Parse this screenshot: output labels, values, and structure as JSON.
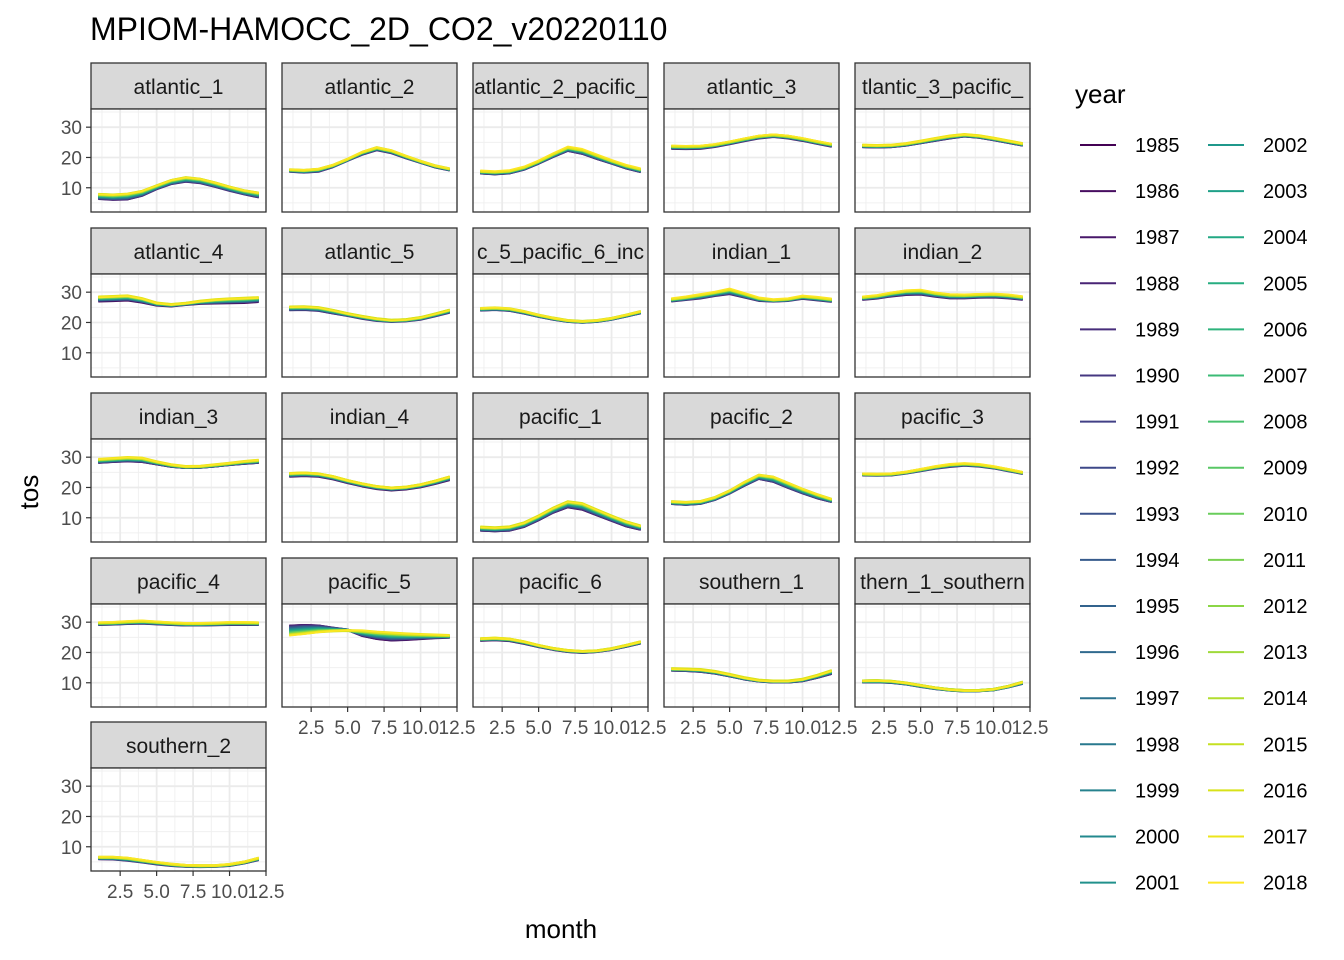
{
  "chart_data": {
    "type": "line",
    "title": "MPIOM-HAMOCC_2D_CO2_v20220110",
    "xlabel": "month",
    "ylabel": "tos",
    "xlim": [
      0.5,
      12.5
    ],
    "ylim": [
      2,
      36
    ],
    "x_ticks": [
      2.5,
      5.0,
      7.5,
      10.0,
      12.5
    ],
    "x_tick_labels": [
      "2.5",
      "5.0",
      "7.5",
      "10.0",
      "12.5"
    ],
    "y_ticks": [
      10,
      20,
      30
    ],
    "y_tick_labels": [
      "10",
      "20",
      "30"
    ],
    "grid": true,
    "legend_position": "right",
    "legend_title": "year",
    "years": [
      "1985",
      "1986",
      "1987",
      "1988",
      "1989",
      "1990",
      "1991",
      "1992",
      "1993",
      "1994",
      "1995",
      "1996",
      "1997",
      "1998",
      "1999",
      "2000",
      "2001",
      "2002",
      "2003",
      "2004",
      "2005",
      "2006",
      "2007",
      "2008",
      "2009",
      "2010",
      "2011",
      "2012",
      "2013",
      "2014",
      "2015",
      "2016",
      "2017",
      "2018"
    ],
    "colors": [
      "#440154",
      "#470d60",
      "#48186a",
      "#482475",
      "#472d7b",
      "#453781",
      "#424086",
      "#3e4989",
      "#3b528b",
      "#375b8d",
      "#33638d",
      "#306a8e",
      "#2c728e",
      "#29798e",
      "#26828e",
      "#23898e",
      "#21918c",
      "#1f988b",
      "#1fa088",
      "#22a884",
      "#27ad81",
      "#2eb37c",
      "#3bbb75",
      "#48c16e",
      "#58c765",
      "#69cd5b",
      "#7ad151",
      "#8bd646",
      "#9fda3a",
      "#b1dd2f",
      "#c5e021",
      "#d8e219",
      "#ece51b",
      "#fde725"
    ],
    "x": [
      1,
      2,
      3,
      4,
      5,
      6,
      7,
      8,
      9,
      10,
      11,
      12
    ],
    "facets": [
      {
        "label": "atlantic_1",
        "early": [
          6.3,
          6.0,
          6.1,
          7.3,
          9.5,
          11.2,
          12.0,
          11.5,
          10.3,
          9.0,
          7.8,
          6.8
        ],
        "late": [
          8.0,
          7.8,
          8.1,
          9.0,
          10.8,
          12.6,
          13.5,
          13.0,
          11.8,
          10.4,
          9.2,
          8.4
        ]
      },
      {
        "label": "atlantic_2",
        "early": [
          15.4,
          15.1,
          15.4,
          16.9,
          19.0,
          21.0,
          22.5,
          21.5,
          19.8,
          18.3,
          16.8,
          15.8
        ],
        "late": [
          16.0,
          15.8,
          16.2,
          17.5,
          19.5,
          21.8,
          23.3,
          22.3,
          20.5,
          18.8,
          17.3,
          16.3
        ]
      },
      {
        "label": "atlantic_2_pacific_",
        "early": [
          14.8,
          14.5,
          14.8,
          16.0,
          18.0,
          20.2,
          22.2,
          21.2,
          19.5,
          18.0,
          16.4,
          15.2
        ],
        "late": [
          15.5,
          15.3,
          15.6,
          16.8,
          18.8,
          21.2,
          23.4,
          22.6,
          20.8,
          19.0,
          17.4,
          16.2
        ]
      },
      {
        "label": "atlantic_3",
        "early": [
          23.0,
          22.9,
          23.0,
          23.6,
          24.5,
          25.5,
          26.4,
          26.9,
          26.4,
          25.6,
          24.6,
          23.7
        ],
        "late": [
          23.8,
          23.7,
          23.8,
          24.3,
          25.2,
          26.2,
          27.1,
          27.5,
          27.1,
          26.3,
          25.3,
          24.4
        ]
      },
      {
        "label": "tlantic_3_pacific_",
        "early": [
          23.5,
          23.4,
          23.5,
          24.0,
          24.8,
          25.6,
          26.4,
          27.0,
          26.6,
          25.8,
          24.9,
          24.0
        ],
        "late": [
          24.1,
          24.0,
          24.1,
          24.6,
          25.4,
          26.3,
          27.1,
          27.6,
          27.2,
          26.4,
          25.5,
          24.6
        ]
      },
      {
        "label": "atlantic_4",
        "early": [
          27.1,
          27.2,
          27.4,
          26.7,
          25.7,
          25.4,
          25.9,
          26.3,
          26.4,
          26.5,
          26.6,
          26.9
        ],
        "late": [
          28.5,
          28.7,
          28.9,
          28.0,
          26.5,
          26.0,
          26.4,
          27.1,
          27.6,
          27.9,
          28.1,
          28.3
        ]
      },
      {
        "label": "atlantic_5",
        "early": [
          24.1,
          24.2,
          23.9,
          23.0,
          22.2,
          21.3,
          20.6,
          20.3,
          20.5,
          21.0,
          22.1,
          23.3
        ],
        "late": [
          25.2,
          25.3,
          25.0,
          24.1,
          23.0,
          22.1,
          21.3,
          20.8,
          21.0,
          21.7,
          22.9,
          24.2
        ]
      },
      {
        "label": "c_5_pacific_6_inc",
        "early": [
          24.0,
          24.2,
          23.9,
          23.0,
          21.9,
          21.0,
          20.3,
          20.0,
          20.3,
          21.0,
          22.0,
          23.1
        ],
        "late": [
          24.7,
          24.9,
          24.6,
          23.7,
          22.5,
          21.5,
          20.7,
          20.4,
          20.7,
          21.4,
          22.5,
          23.7
        ]
      },
      {
        "label": "indian_1",
        "early": [
          27.0,
          27.5,
          28.0,
          28.8,
          29.4,
          28.3,
          27.2,
          27.0,
          27.2,
          27.9,
          27.4,
          26.9
        ],
        "late": [
          27.8,
          28.4,
          29.2,
          30.0,
          31.0,
          29.6,
          28.1,
          27.5,
          27.8,
          28.7,
          28.3,
          27.7
        ]
      },
      {
        "label": "indian_2",
        "early": [
          27.6,
          28.0,
          28.7,
          29.2,
          29.3,
          28.6,
          28.1,
          28.1,
          28.3,
          28.4,
          28.1,
          27.6
        ],
        "late": [
          28.4,
          28.9,
          29.8,
          30.5,
          30.7,
          29.8,
          29.2,
          29.1,
          29.3,
          29.4,
          29.1,
          28.5
        ]
      },
      {
        "label": "indian_3",
        "early": [
          28.2,
          28.5,
          28.7,
          28.5,
          27.7,
          26.9,
          26.5,
          26.6,
          27.0,
          27.5,
          27.9,
          28.2
        ],
        "late": [
          29.3,
          29.6,
          29.9,
          29.7,
          28.5,
          27.5,
          26.9,
          27.0,
          27.5,
          28.0,
          28.6,
          29.0
        ]
      },
      {
        "label": "indian_4",
        "early": [
          23.7,
          23.9,
          23.7,
          22.8,
          21.6,
          20.5,
          19.6,
          19.2,
          19.5,
          20.2,
          21.3,
          22.6
        ],
        "late": [
          24.7,
          24.9,
          24.6,
          23.7,
          22.4,
          21.3,
          20.4,
          19.9,
          20.2,
          21.0,
          22.2,
          23.6
        ]
      },
      {
        "label": "pacific_1",
        "early": [
          5.8,
          5.6,
          5.8,
          7.0,
          9.2,
          11.7,
          13.5,
          12.7,
          10.8,
          9.0,
          7.2,
          6.1
        ],
        "late": [
          7.0,
          6.8,
          7.1,
          8.4,
          10.7,
          13.3,
          15.4,
          14.8,
          12.7,
          10.7,
          8.8,
          7.4
        ]
      },
      {
        "label": "pacific_2",
        "early": [
          14.6,
          14.3,
          14.6,
          15.9,
          18.0,
          20.5,
          22.8,
          21.8,
          19.8,
          18.0,
          16.4,
          15.2
        ],
        "late": [
          15.4,
          15.2,
          15.5,
          16.8,
          19.0,
          21.8,
          24.2,
          23.6,
          21.6,
          19.6,
          17.8,
          16.2
        ]
      },
      {
        "label": "pacific_3",
        "early": [
          24.1,
          24.0,
          24.1,
          24.7,
          25.5,
          26.3,
          26.9,
          27.3,
          27.0,
          26.4,
          25.5,
          24.6
        ],
        "late": [
          24.5,
          24.4,
          24.5,
          25.1,
          26.0,
          26.9,
          27.6,
          27.9,
          27.6,
          26.9,
          26.0,
          25.0
        ]
      },
      {
        "label": "pacific_4",
        "early": [
          29.2,
          29.3,
          29.5,
          29.6,
          29.4,
          29.2,
          29.0,
          29.0,
          29.1,
          29.2,
          29.2,
          29.2
        ],
        "late": [
          29.8,
          29.9,
          30.2,
          30.4,
          30.1,
          29.8,
          29.6,
          29.6,
          29.7,
          29.9,
          29.9,
          29.8
        ]
      },
      {
        "label": "pacific_5",
        "early": [
          29.0,
          29.2,
          29.0,
          28.2,
          27.5,
          25.5,
          24.5,
          24.0,
          24.2,
          24.5,
          24.8,
          25.0
        ],
        "late": [
          25.5,
          26.0,
          26.6,
          27.0,
          27.2,
          27.2,
          26.8,
          26.5,
          26.2,
          26.0,
          25.8,
          25.6
        ]
      },
      {
        "label": "pacific_6",
        "early": [
          24.0,
          24.2,
          23.9,
          23.0,
          21.9,
          21.0,
          20.3,
          20.0,
          20.3,
          21.0,
          22.0,
          23.1
        ],
        "late": [
          24.6,
          24.8,
          24.5,
          23.6,
          22.4,
          21.4,
          20.7,
          20.4,
          20.6,
          21.3,
          22.4,
          23.6
        ]
      },
      {
        "label": "southern_1",
        "early": [
          14.1,
          14.0,
          13.7,
          13.1,
          12.2,
          11.2,
          10.5,
          10.2,
          10.2,
          10.6,
          11.7,
          13.0
        ],
        "late": [
          14.7,
          14.6,
          14.4,
          13.8,
          12.8,
          11.7,
          10.9,
          10.6,
          10.6,
          11.2,
          12.5,
          14.1
        ]
      },
      {
        "label": "thern_1_southern",
        "early": [
          10.2,
          10.2,
          10.0,
          9.5,
          8.7,
          8.0,
          7.5,
          7.2,
          7.3,
          7.6,
          8.5,
          9.7
        ],
        "late": [
          10.7,
          10.8,
          10.6,
          10.0,
          9.2,
          8.4,
          7.8,
          7.5,
          7.5,
          7.9,
          8.9,
          10.3
        ]
      },
      {
        "label": "southern_2",
        "early": [
          6.0,
          5.9,
          5.5,
          4.9,
          4.3,
          3.8,
          3.5,
          3.4,
          3.5,
          3.8,
          4.6,
          5.7
        ],
        "late": [
          6.6,
          6.6,
          6.3,
          5.6,
          4.9,
          4.3,
          3.9,
          3.8,
          3.8,
          4.2,
          5.0,
          6.3
        ]
      }
    ]
  }
}
